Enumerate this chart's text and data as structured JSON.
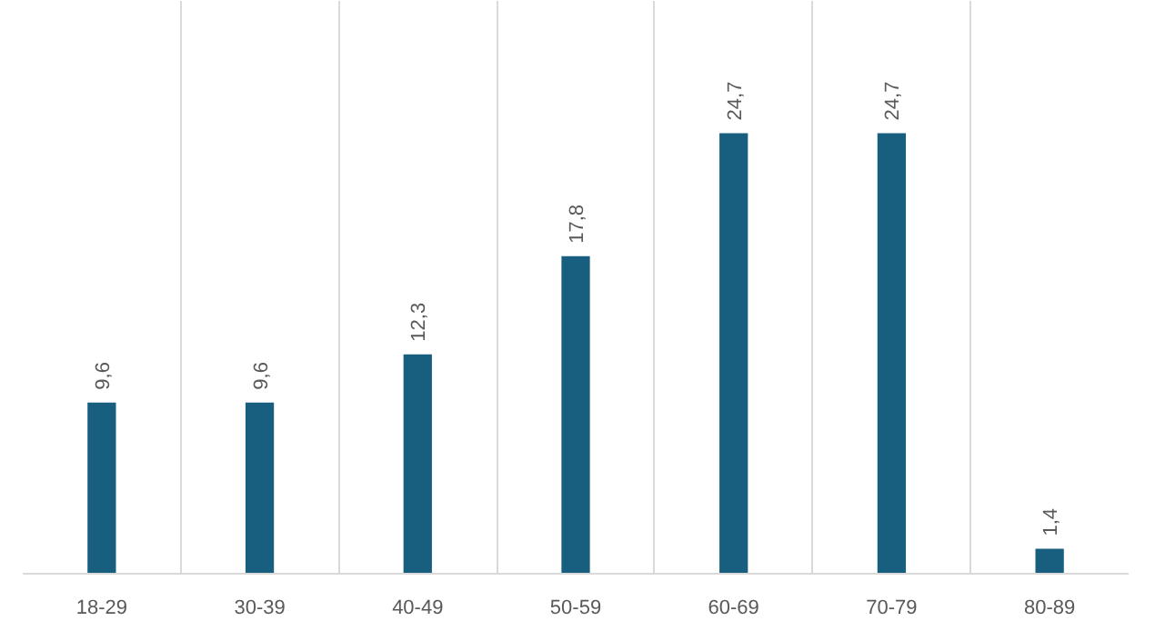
{
  "chart_data": {
    "type": "bar",
    "categories": [
      "18-29",
      "30-39",
      "40-49",
      "50-59",
      "60-69",
      "70-79",
      "80-89"
    ],
    "values": [
      9.6,
      9.6,
      12.3,
      17.8,
      24.7,
      24.7,
      1.4
    ],
    "value_labels": [
      "9,6",
      "9,6",
      "12,3",
      "17,8",
      "24,7",
      "24,7",
      "1,4"
    ],
    "color": "#175e7f",
    "grid": "x"
  }
}
